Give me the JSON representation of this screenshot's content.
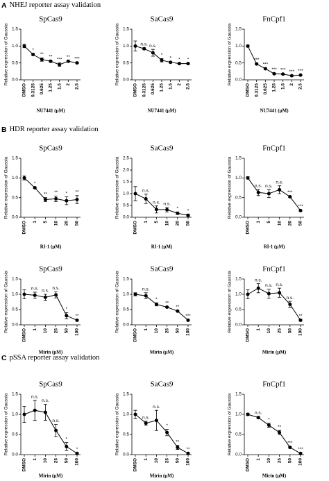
{
  "sections": [
    {
      "label": "A",
      "title": "NHEJ reporter assay validation"
    },
    {
      "label": "B",
      "title": "HDR reporter assay validation"
    },
    {
      "label": "C",
      "title": "pSSA reporter assay validation"
    }
  ],
  "chart_data": [
    {
      "type": "line",
      "title": "SpCas9",
      "ylabel": "Relative expression of Gaussia",
      "xlabel": "NU7441 (μM)",
      "categories": [
        "DMSO",
        "0.3125",
        "0.625",
        "1.25",
        "1.5",
        "2",
        "2.5"
      ],
      "values": [
        1.0,
        0.75,
        0.6,
        0.55,
        0.45,
        0.55,
        0.5
      ],
      "errors": [
        0.05,
        0.03,
        0.05,
        0.03,
        0.05,
        0.02,
        0.02
      ],
      "annotations": [
        null,
        "*",
        "**",
        "**",
        "***",
        "**",
        "***"
      ],
      "ylim": [
        0,
        1.5
      ],
      "yticks": [
        {
          "value": 0,
          "label": "0.0"
        },
        0.5,
        {
          "value": 1,
          "label": "1.0"
        },
        1.5
      ],
      "color": "#000000"
    },
    {
      "type": "line",
      "title": "SaCas9",
      "ylabel": "Relative expression of Gaussia",
      "xlabel": "NU7441 (μM)",
      "categories": [
        "DMSO",
        "0.3125",
        "0.625",
        "1.25",
        "1.5",
        "2",
        "2.5"
      ],
      "values": [
        1.0,
        0.92,
        0.8,
        0.58,
        0.52,
        0.48,
        0.48
      ],
      "errors": [
        0.15,
        0.03,
        0.1,
        0.05,
        0.02,
        0.02,
        0.02
      ],
      "annotations": [
        null,
        "n.s.",
        "n.s.",
        "*",
        "*",
        "*",
        "*"
      ],
      "ylim": [
        0,
        1.5
      ],
      "yticks": [
        {
          "value": 0,
          "label": "0.0"
        },
        0.5,
        {
          "value": 1,
          "label": "1.0"
        },
        1.5
      ],
      "color": "#000000"
    },
    {
      "type": "line",
      "title": "FnCpf1",
      "ylabel": "Relative expression of Gaussia",
      "xlabel": "NU7441 (μM)",
      "categories": [
        "DMSO",
        "0.3125",
        "0.625",
        "1.25",
        "1.5",
        "2",
        "2.5"
      ],
      "values": [
        1.0,
        0.47,
        0.33,
        0.18,
        0.17,
        0.12,
        0.14
      ],
      "errors": [
        0.03,
        0.02,
        0.02,
        0.02,
        0.02,
        0.02,
        0.02
      ],
      "annotations": [
        null,
        "***",
        "***",
        "***",
        "***",
        "***",
        "***"
      ],
      "ylim": [
        0,
        1.5
      ],
      "yticks": [
        {
          "value": 0,
          "label": "0.0"
        },
        0.5,
        {
          "value": 1,
          "label": "1.0"
        },
        1.5
      ],
      "color": "#000000"
    },
    {
      "type": "line",
      "title": "SpCas9",
      "ylabel": "Relative expression of Gaussia",
      "xlabel": "RI-1 (μM)",
      "categories": [
        "DMSO",
        "1",
        "5",
        "10",
        "20",
        "50"
      ],
      "values": [
        1.0,
        0.75,
        0.45,
        0.47,
        0.42,
        0.45
      ],
      "errors": [
        0.05,
        0.02,
        0.05,
        0.07,
        0.1,
        0.1
      ],
      "annotations": [
        null,
        "*",
        "**",
        "**",
        "*",
        "**"
      ],
      "ylim": [
        0,
        1.5
      ],
      "yticks": [
        {
          "value": 0,
          "label": "0.0"
        },
        0.5,
        {
          "value": 1,
          "label": "1.0"
        },
        1.5
      ],
      "color": "#000000"
    },
    {
      "type": "line",
      "title": "SaCas9",
      "ylabel": "Relative expression of Gaussia",
      "xlabel": "RI-1 (μM)",
      "categories": [
        "DMSO",
        "1",
        "5",
        "10",
        "20",
        "50"
      ],
      "values": [
        1.0,
        0.78,
        0.33,
        0.32,
        0.17,
        0.08
      ],
      "errors": [
        0.3,
        0.2,
        0.15,
        0.1,
        0.05,
        0.05
      ],
      "annotations": [
        null,
        "n.s.",
        "n.s.",
        "n.s.",
        "*",
        "*"
      ],
      "ylim": [
        0,
        2.5
      ],
      "yticks": [
        {
          "value": 0,
          "label": "0.0"
        },
        0.5,
        {
          "value": 1,
          "label": "1.0"
        },
        1.5,
        {
          "value": 2,
          "label": "2.0"
        },
        2.5
      ],
      "color": "#000000"
    },
    {
      "type": "line",
      "title": "FnCpf1",
      "ylabel": "Relative expression of Gaussia",
      "xlabel": "RI-1 (μM)",
      "categories": [
        "DMSO",
        "1",
        "5",
        "10",
        "20",
        "50"
      ],
      "values": [
        1.0,
        0.63,
        0.6,
        0.7,
        0.52,
        0.17
      ],
      "errors": [
        0.03,
        0.08,
        0.1,
        0.1,
        0.02,
        0.02
      ],
      "annotations": [
        null,
        "n.s.",
        "n.s.",
        "n.s.",
        "***",
        "***"
      ],
      "ylim": [
        0,
        1.5
      ],
      "yticks": [
        {
          "value": 0,
          "label": "0.0"
        },
        0.5,
        {
          "value": 1,
          "label": "1.0"
        },
        1.5
      ],
      "color": "#000000"
    },
    {
      "type": "line",
      "title": "SpCas9",
      "ylabel": "Relative expression of Gaussia",
      "xlabel": "Mirin (μM)",
      "categories": [
        "DMSO",
        "1",
        "10",
        "25",
        "50",
        "100"
      ],
      "values": [
        1.0,
        0.97,
        0.9,
        0.98,
        0.3,
        0.15
      ],
      "errors": [
        0.15,
        0.1,
        0.1,
        0.1,
        0.1,
        0.02
      ],
      "annotations": [
        null,
        "n.s.",
        "n.s.",
        "n.s.",
        "*",
        "**"
      ],
      "ylim": [
        0,
        1.5
      ],
      "yticks": [
        {
          "value": 0,
          "label": "0.0"
        },
        0.5,
        {
          "value": 1,
          "label": "1.0"
        },
        1.5
      ],
      "color": "#000000"
    },
    {
      "type": "line",
      "title": "SaCas9",
      "ylabel": "Relative expression of Gaussia",
      "xlabel": "Mirin (μM)",
      "categories": [
        "DMSO",
        "1",
        "10",
        "25",
        "50",
        "100"
      ],
      "values": [
        1.0,
        0.95,
        0.67,
        0.58,
        0.45,
        0.15
      ],
      "errors": [
        0.05,
        0.1,
        0.05,
        0.02,
        0.02,
        0.02
      ],
      "annotations": [
        null,
        "n.s.",
        "*",
        "**",
        "**",
        "***"
      ],
      "ylim": [
        0,
        1.5
      ],
      "yticks": [
        {
          "value": 0,
          "label": "0.0"
        },
        0.5,
        {
          "value": 1,
          "label": "1.0"
        },
        1.5
      ],
      "color": "#000000"
    },
    {
      "type": "line",
      "title": "FnCpf1",
      "ylabel": "Relative expression of Gaussia",
      "xlabel": "Mirin (μM)",
      "categories": [
        "DMSO",
        "1",
        "10",
        "25",
        "50",
        "100"
      ],
      "values": [
        1.0,
        1.2,
        1.02,
        1.05,
        0.67,
        0.15
      ],
      "errors": [
        0.15,
        0.15,
        0.15,
        0.15,
        0.1,
        0.03
      ],
      "annotations": [
        null,
        "n.s.",
        "n.s.",
        "n.s.",
        "n.s.",
        "**"
      ],
      "ylim": [
        0,
        1.5
      ],
      "yticks": [
        {
          "value": 0,
          "label": "0.0"
        },
        0.5,
        {
          "value": 1,
          "label": "1.0"
        },
        1.5
      ],
      "color": "#000000"
    },
    {
      "type": "line",
      "title": "SpCas9",
      "ylabel": "Relative expression of Gaussia",
      "xlabel": "Mirin (μM)",
      "categories": [
        "DMSO",
        "1",
        "10",
        "25",
        "50",
        "100"
      ],
      "values": [
        1.0,
        1.1,
        1.05,
        0.6,
        0.2,
        0.03
      ],
      "errors": [
        0.2,
        0.25,
        0.2,
        0.15,
        0.1,
        0.02
      ],
      "annotations": [
        null,
        "n.s.",
        "n.s.",
        "n.s.",
        "*",
        "*"
      ],
      "ylim": [
        0,
        1.5
      ],
      "yticks": [
        {
          "value": 0,
          "label": "0.0"
        },
        0.5,
        {
          "value": 1,
          "label": "1.0"
        },
        1.5
      ],
      "color": "#000000"
    },
    {
      "type": "line",
      "title": "SaCas9",
      "ylabel": "Relative expression of Gaussia",
      "xlabel": "Mirin (μM)",
      "categories": [
        "DMSO",
        "1",
        "10",
        "25",
        "50",
        "100"
      ],
      "values": [
        1.0,
        0.78,
        0.85,
        0.55,
        0.18,
        0.03
      ],
      "errors": [
        0.1,
        0.05,
        0.25,
        0.08,
        0.05,
        0.02
      ],
      "annotations": [
        null,
        "n.s.",
        "n.s.",
        "*",
        "**",
        "**"
      ],
      "ylim": [
        0,
        1.5
      ],
      "yticks": [
        {
          "value": 0,
          "label": "0.0"
        },
        0.5,
        {
          "value": 1,
          "label": "1.0"
        },
        1.5
      ],
      "color": "#000000"
    },
    {
      "type": "line",
      "title": "FnCpf1",
      "ylabel": "Relative expression of Gaussia",
      "xlabel": "Mirin (μM)",
      "categories": [
        "DMSO",
        "1",
        "10",
        "25",
        "50",
        "100"
      ],
      "values": [
        1.0,
        0.92,
        0.73,
        0.55,
        0.18,
        0.03
      ],
      "errors": [
        0.03,
        0.03,
        0.05,
        0.05,
        0.02,
        0.02
      ],
      "annotations": [
        null,
        "n.s.",
        "*",
        "**",
        "***",
        "***"
      ],
      "ylim": [
        0,
        1.5
      ],
      "yticks": [
        {
          "value": 0,
          "label": "0.0"
        },
        0.5,
        {
          "value": 1,
          "label": "1.0"
        },
        1.5
      ],
      "color": "#000000"
    }
  ]
}
